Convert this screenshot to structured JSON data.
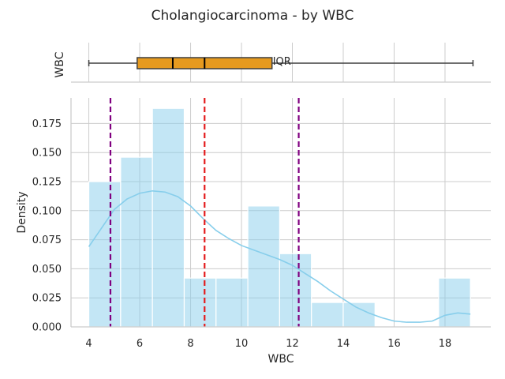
{
  "chart_data": {
    "type": "histogram",
    "title": "Cholangiocarcinoma - by WBC",
    "xlabel": "WBC",
    "ylabel": "Density",
    "box_ylabel": "WBC",
    "xlim": [
      3.3,
      19.8
    ],
    "ylim": [
      0,
      0.197
    ],
    "xticks": [
      4,
      6,
      8,
      10,
      12,
      14,
      16,
      18
    ],
    "yticks": [
      0.0,
      0.025,
      0.05,
      0.075,
      0.1,
      0.125,
      0.15,
      0.175
    ],
    "ytick_labels": [
      "0.000",
      "0.025",
      "0.050",
      "0.075",
      "0.100",
      "0.125",
      "0.150",
      "0.175"
    ],
    "bins": [
      {
        "x0": 4.0,
        "x1": 5.25,
        "density": 0.125
      },
      {
        "x0": 5.25,
        "x1": 6.5,
        "density": 0.146
      },
      {
        "x0": 6.5,
        "x1": 7.75,
        "density": 0.188
      },
      {
        "x0": 7.75,
        "x1": 9.0,
        "density": 0.042
      },
      {
        "x0": 9.0,
        "x1": 10.25,
        "density": 0.042
      },
      {
        "x0": 10.25,
        "x1": 11.5,
        "density": 0.104
      },
      {
        "x0": 11.5,
        "x1": 12.75,
        "density": 0.063
      },
      {
        "x0": 12.75,
        "x1": 14.0,
        "density": 0.021
      },
      {
        "x0": 14.0,
        "x1": 15.25,
        "density": 0.021
      },
      {
        "x0": 15.25,
        "x1": 16.5,
        "density": 0.0
      },
      {
        "x0": 16.5,
        "x1": 17.75,
        "density": 0.0
      },
      {
        "x0": 17.75,
        "x1": 19.0,
        "density": 0.042
      }
    ],
    "kde": [
      [
        4.0,
        0.069
      ],
      [
        4.5,
        0.085
      ],
      [
        5.0,
        0.101
      ],
      [
        5.5,
        0.11
      ],
      [
        6.0,
        0.115
      ],
      [
        6.5,
        0.117
      ],
      [
        7.0,
        0.116
      ],
      [
        7.5,
        0.112
      ],
      [
        8.0,
        0.104
      ],
      [
        8.5,
        0.093
      ],
      [
        9.0,
        0.083
      ],
      [
        9.5,
        0.076
      ],
      [
        10.0,
        0.07
      ],
      [
        10.5,
        0.066
      ],
      [
        11.0,
        0.062
      ],
      [
        11.5,
        0.058
      ],
      [
        12.0,
        0.053
      ],
      [
        12.5,
        0.046
      ],
      [
        13.0,
        0.039
      ],
      [
        13.5,
        0.031
      ],
      [
        14.0,
        0.024
      ],
      [
        14.5,
        0.017
      ],
      [
        15.0,
        0.012
      ],
      [
        15.5,
        0.008
      ],
      [
        16.0,
        0.005
      ],
      [
        16.5,
        0.004
      ],
      [
        17.0,
        0.004
      ],
      [
        17.5,
        0.005
      ],
      [
        18.0,
        0.01
      ],
      [
        18.5,
        0.012
      ],
      [
        19.0,
        0.011
      ]
    ],
    "mean_line": 8.55,
    "sd_lines": [
      4.85,
      12.25
    ],
    "boxplot": {
      "whisker_low": 4.0,
      "q1": 5.9,
      "median": 7.3,
      "mean": 8.55,
      "q3": 11.2,
      "whisker_high": 19.1,
      "label": "IQR"
    },
    "colors": {
      "hist_fill": "#87ceeb",
      "kde": "#87ceeb",
      "mean": "#e41a1c",
      "sd": "#800080",
      "box": "#e69a1f",
      "grid": "#cccccc",
      "axis": "#cccccc"
    }
  }
}
